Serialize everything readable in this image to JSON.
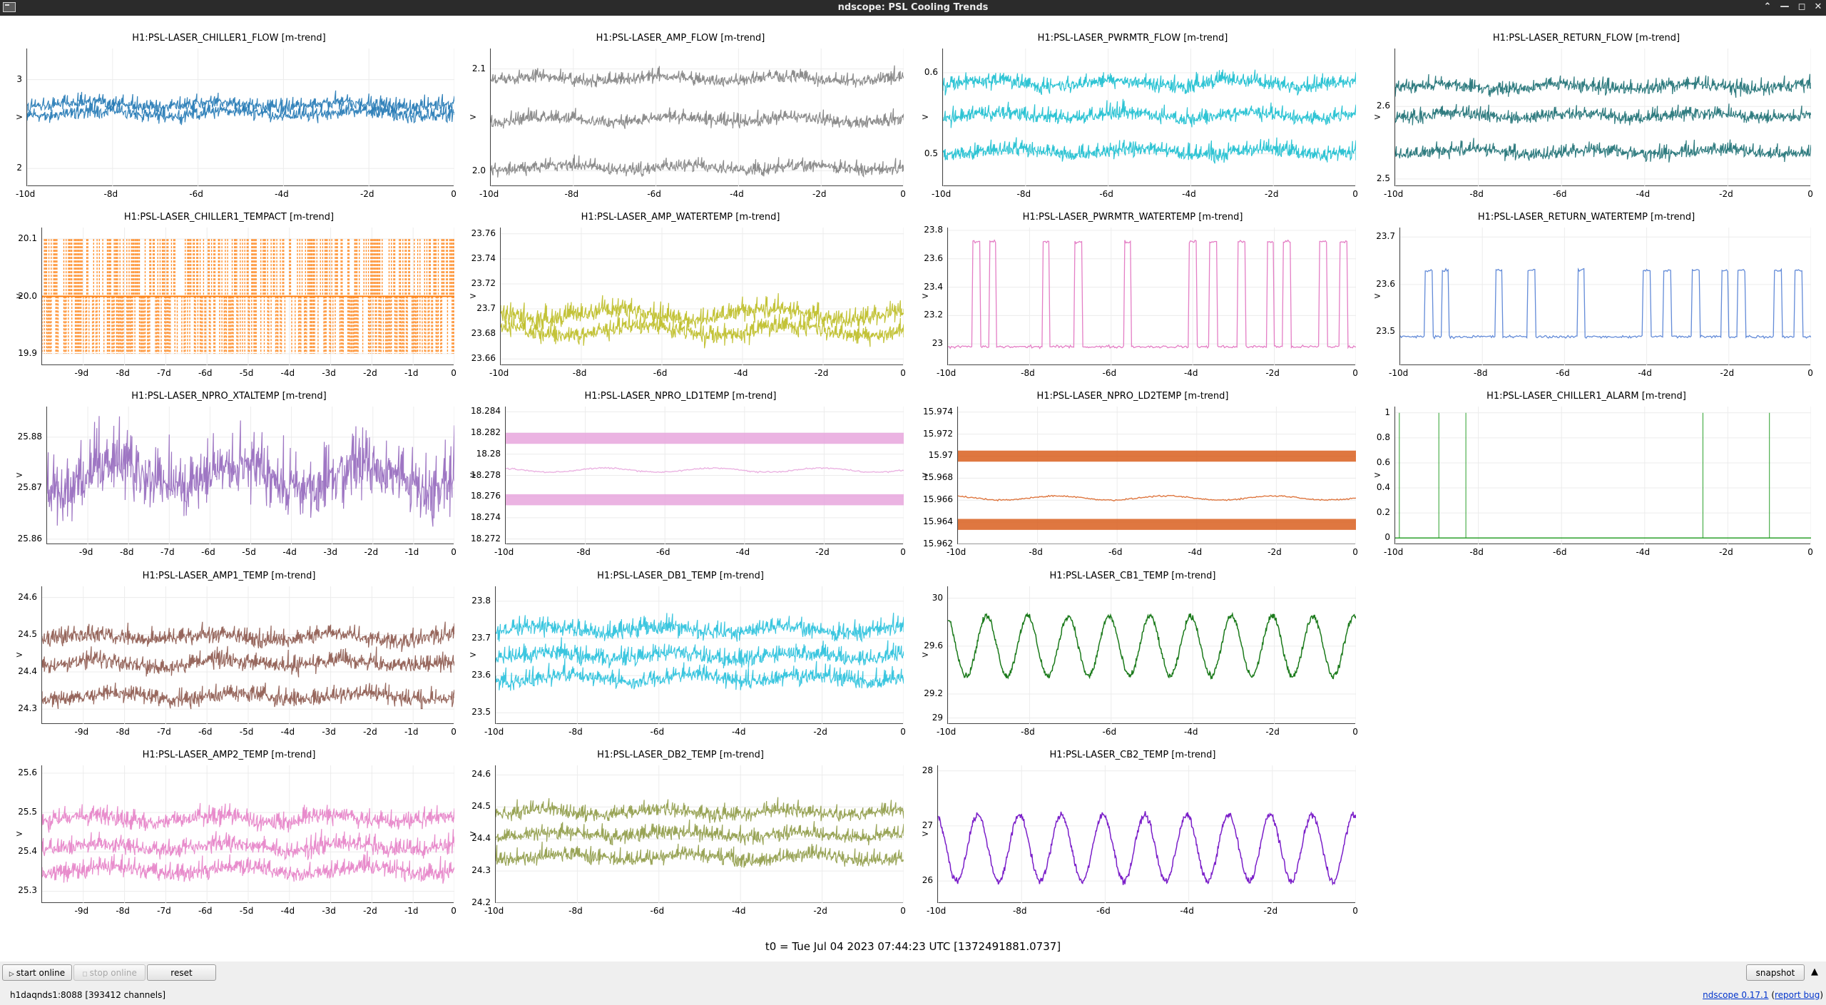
{
  "window": {
    "title": "ndscope: PSL Cooling Trends",
    "buttons": [
      "⌃",
      "—",
      "◻",
      "✕"
    ]
  },
  "y_unit_label": ">",
  "panels": [
    {
      "title": "H1:PSL-LASER_CHILLER1_FLOW [m-trend]",
      "color": "#1f77b4",
      "style": "band",
      "ymin": 1.8,
      "ymax": 3.35,
      "yticks": [
        "3",
        "2"
      ],
      "xticks": [
        "-10d",
        "-8d",
        "-6d",
        "-4d",
        "-2d",
        "0"
      ],
      "levels": [
        2.64,
        2.74
      ],
      "spread": 0.05
    },
    {
      "title": "H1:PSL-LASER_AMP_FLOW [m-trend]",
      "color": "#7f7f7f",
      "style": "band",
      "ymin": 1.985,
      "ymax": 2.12,
      "yticks": [
        "2.1",
        "2.0"
      ],
      "xticks": [
        "-10d",
        "-8d",
        "-6d",
        "-4d",
        "-2d",
        "0"
      ],
      "levels": [
        2.005,
        2.052,
        2.092
      ],
      "spread": 0.004
    },
    {
      "title": "H1:PSL-LASER_PWRMTR_FLOW [m-trend]",
      "color": "#17becf",
      "style": "band",
      "ymin": 0.46,
      "ymax": 0.63,
      "yticks": [
        "0.6",
        "0.5"
      ],
      "xticks": [
        "-10d",
        "-8d",
        "-6d",
        "-4d",
        "-2d",
        "0"
      ],
      "levels": [
        0.505,
        0.55,
        0.59
      ],
      "spread": 0.006
    },
    {
      "title": "H1:PSL-LASER_RETURN_FLOW [m-trend]",
      "color": "#1a6e72",
      "style": "band",
      "ymin": 2.49,
      "ymax": 2.68,
      "yticks": [
        "2.6",
        "2.5"
      ],
      "xticks": [
        "-10d",
        "-8d",
        "-6d",
        "-4d",
        "-2d",
        "0"
      ],
      "levels": [
        2.54,
        2.59,
        2.63
      ],
      "spread": 0.006
    },
    {
      "title": "H1:PSL-LASER_CHILLER1_TEMPACT [m-trend]",
      "color": "#ff7f0e",
      "style": "step",
      "ymin": 19.88,
      "ymax": 20.12,
      "yticks": [
        "20.1",
        "20.0",
        "19.9"
      ],
      "xticks": [
        "-9d",
        "-8d",
        "-7d",
        "-6d",
        "-5d",
        "-4d",
        "-3d",
        "-2d",
        "-1d",
        "0"
      ],
      "levels": [
        19.9,
        20.0,
        20.1
      ]
    },
    {
      "title": "H1:PSL-LASER_AMP_WATERTEMP [m-trend]",
      "color": "#bcbd22",
      "style": "wander",
      "ymin": 23.655,
      "ymax": 23.765,
      "yticks": [
        "23.76",
        "23.74",
        "23.72",
        "23.7",
        "23.68",
        "23.66"
      ],
      "xticks": [
        "-10d",
        "-8d",
        "-6d",
        "-4d",
        "-2d",
        "0"
      ],
      "levels": [
        23.685,
        23.698
      ],
      "spread": 0.005
    },
    {
      "title": "H1:PSL-LASER_PWRMTR_WATERTEMP [m-trend]",
      "color": "#e377c2",
      "style": "pulse",
      "ymin": 22.85,
      "ymax": 23.82,
      "yticks": [
        "23.8",
        "23.6",
        "23.4",
        "23.2",
        "23"
      ],
      "xticks": [
        "-10d",
        "-8d",
        "-6d",
        "-4d",
        "-2d",
        "0"
      ],
      "levels": [
        22.98,
        23.72
      ]
    },
    {
      "title": "H1:PSL-LASER_RETURN_WATERTEMP [m-trend]",
      "color": "#5b85d6",
      "style": "pulse",
      "ymin": 23.43,
      "ymax": 23.72,
      "yticks": [
        "23.7",
        "23.6",
        "23.5"
      ],
      "xticks": [
        "-10d",
        "-8d",
        "-6d",
        "-4d",
        "-2d",
        "0"
      ],
      "levels": [
        23.49,
        23.63
      ]
    },
    {
      "title": "H1:PSL-LASER_NPRO_XTALTEMP [m-trend]",
      "color": "#9467bd",
      "style": "noisy",
      "ymin": 25.859,
      "ymax": 25.886,
      "yticks": [
        "25.88",
        "25.87",
        "25.86"
      ],
      "xticks": [
        "-9d",
        "-8d",
        "-7d",
        "-6d",
        "-5d",
        "-4d",
        "-3d",
        "-2d",
        "-1d",
        "0"
      ],
      "levels": [
        25.874
      ],
      "spread": 0.004
    },
    {
      "title": "H1:PSL-LASER_NPRO_LD1TEMP [m-trend]",
      "color": "#e8a6dd",
      "style": "bars",
      "ymin": 18.2715,
      "ymax": 18.2845,
      "yticks": [
        "18.284",
        "18.282",
        "18.28",
        "18.278",
        "18.276",
        "18.274",
        "18.272"
      ],
      "xticks": [
        "-10d",
        "-8d",
        "-6d",
        "-4d",
        "-2d",
        "0"
      ],
      "levels": [
        18.2815,
        18.2785,
        18.2757
      ]
    },
    {
      "title": "H1:PSL-LASER_NPRO_LD2TEMP [m-trend]",
      "color": "#d95f1e",
      "style": "bars",
      "ymin": 15.962,
      "ymax": 15.9745,
      "yticks": [
        "15.974",
        "15.972",
        "15.97",
        "15.968",
        "15.966",
        "15.964",
        "15.962"
      ],
      "xticks": [
        "-10d",
        "-8d",
        "-6d",
        "-4d",
        "-2d",
        "0"
      ],
      "levels": [
        15.97,
        15.9662,
        15.9638
      ]
    },
    {
      "title": "H1:PSL-LASER_CHILLER1_ALARM [m-trend]",
      "color": "#2ca02c",
      "style": "spikes",
      "ymin": -0.05,
      "ymax": 1.05,
      "yticks": [
        "1",
        "0.8",
        "0.6",
        "0.4",
        "0.2",
        "0"
      ],
      "xticks": [
        "-10d",
        "-8d",
        "-6d",
        "-4d",
        "-2d",
        "0"
      ],
      "spike_days": [
        -9.9,
        -8.95,
        -8.3,
        -2.6,
        -1.0
      ]
    },
    {
      "title": "H1:PSL-LASER_AMP1_TEMP [m-trend]",
      "color": "#8c564b",
      "style": "band",
      "ymin": 24.26,
      "ymax": 24.63,
      "yticks": [
        "24.6",
        "24.5",
        "24.4",
        "24.3"
      ],
      "xticks": [
        "-9d",
        "-8d",
        "-7d",
        "-6d",
        "-5d",
        "-4d",
        "-3d",
        "-2d",
        "-1d",
        "0"
      ],
      "levels": [
        24.34,
        24.43,
        24.5
      ],
      "spread": 0.015
    },
    {
      "title": "H1:PSL-LASER_DB1_TEMP [m-trend]",
      "color": "#26c0dc",
      "style": "band",
      "ymin": 23.47,
      "ymax": 23.84,
      "yticks": [
        "23.8",
        "23.7",
        "23.6",
        "23.5"
      ],
      "xticks": [
        "-10d",
        "-8d",
        "-6d",
        "-4d",
        "-2d",
        "0"
      ],
      "levels": [
        23.6,
        23.66,
        23.73
      ],
      "spread": 0.015
    },
    {
      "title": "H1:PSL-LASER_CB1_TEMP [m-trend]",
      "color": "#1b7a1b",
      "style": "daily",
      "ymin": 28.95,
      "ymax": 30.1,
      "yticks": [
        "30",
        "29.6",
        "29.2",
        "29"
      ],
      "xticks": [
        "-10d",
        "-8d",
        "-6d",
        "-4d",
        "-2d",
        "0"
      ],
      "base": 29.6,
      "amp": 0.25
    },
    null,
    {
      "title": "H1:PSL-LASER_AMP2_TEMP [m-trend]",
      "color": "#e57fc7",
      "style": "band",
      "ymin": 25.27,
      "ymax": 25.62,
      "yticks": [
        "25.6",
        "25.5",
        "25.4",
        "25.3"
      ],
      "xticks": [
        "-9d",
        "-8d",
        "-7d",
        "-6d",
        "-5d",
        "-4d",
        "-3d",
        "-2d",
        "-1d",
        "0"
      ],
      "levels": [
        25.36,
        25.42,
        25.49
      ],
      "spread": 0.015
    },
    {
      "title": "H1:PSL-LASER_DB2_TEMP [m-trend]",
      "color": "#8e9a45",
      "style": "band",
      "ymin": 24.2,
      "ymax": 24.63,
      "yticks": [
        "24.6",
        "24.5",
        "24.4",
        "24.3",
        "24.2"
      ],
      "xticks": [
        "-10d",
        "-8d",
        "-6d",
        "-4d",
        "-2d",
        "0"
      ],
      "levels": [
        24.35,
        24.42,
        24.49
      ],
      "spread": 0.015
    },
    {
      "title": "H1:PSL-LASER_CB2_TEMP [m-trend]",
      "color": "#7b1fc9",
      "style": "daily",
      "ymin": 25.6,
      "ymax": 28.1,
      "yticks": [
        "28",
        "27",
        "26"
      ],
      "xticks": [
        "-10d",
        "-8d",
        "-6d",
        "-4d",
        "-2d",
        "0"
      ],
      "base": 26.6,
      "amp": 0.6
    },
    null
  ],
  "t0_label": "t0 = Tue Jul 04 2023 07:44:23 UTC [1372491881.0737]",
  "controls": {
    "start_online": "start online",
    "stop_online": "stop online",
    "reset": "reset",
    "snapshot": "snapshot"
  },
  "status": {
    "server": "h1daqnds1:8088  [393412 channels]",
    "version": "ndscope 0.17.1",
    "report_bug": "report bug"
  }
}
